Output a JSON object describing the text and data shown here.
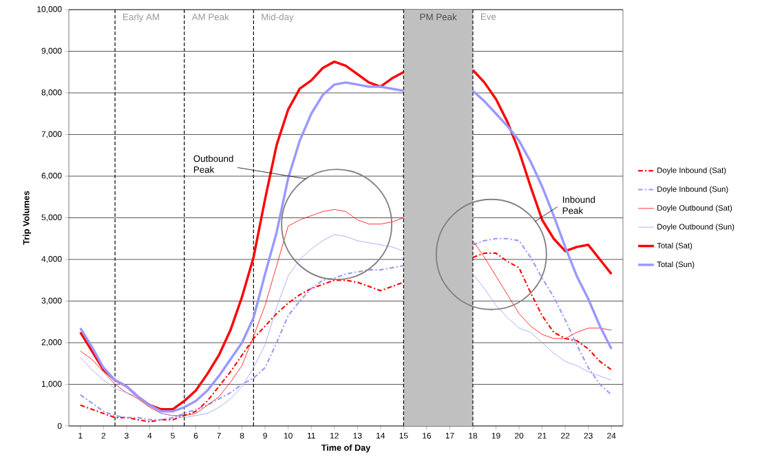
{
  "chart_data": {
    "type": "line",
    "xlabel": "Time of Day",
    "ylabel": "Trip Volumes",
    "x": [
      1,
      1.5,
      2,
      2.5,
      3,
      3.5,
      4,
      4.5,
      5,
      5.5,
      6,
      6.5,
      7,
      7.5,
      8,
      8.5,
      9,
      9.5,
      10,
      10.5,
      11,
      11.5,
      12,
      12.5,
      13,
      13.5,
      14,
      14.5,
      15,
      15.5,
      16,
      16.5,
      17,
      17.5,
      18,
      18.5,
      19,
      19.5,
      20,
      20.5,
      21,
      21.5,
      22,
      22.5,
      23,
      23.5,
      24
    ],
    "series": [
      {
        "name": "Doyle Inbound (Sat)",
        "color": "#ff0000",
        "line_style": "dashed",
        "values": [
          500,
          400,
          300,
          200,
          200,
          150,
          100,
          150,
          150,
          250,
          350,
          600,
          950,
          1300,
          1700,
          2100,
          2400,
          2700,
          2950,
          3150,
          3300,
          3400,
          3500,
          3500,
          3450,
          3350,
          3250,
          3350,
          3450,
          null,
          null,
          null,
          null,
          null,
          4050,
          4150,
          4150,
          3950,
          3800,
          3200,
          2650,
          2250,
          2100,
          2050,
          1850,
          1550,
          1350
        ]
      },
      {
        "name": "Doyle Inbound (Sun)",
        "color": "#9999ff",
        "line_style": "dashed",
        "values": [
          750,
          550,
          350,
          250,
          200,
          200,
          150,
          150,
          200,
          300,
          400,
          500,
          650,
          800,
          1000,
          1150,
          1400,
          2000,
          2650,
          3000,
          3300,
          3500,
          3550,
          3650,
          3700,
          3750,
          3750,
          3800,
          3850,
          null,
          null,
          null,
          null,
          null,
          4350,
          4450,
          4500,
          4500,
          4450,
          4050,
          3550,
          3100,
          2550,
          1950,
          1400,
          1000,
          750
        ]
      },
      {
        "name": "Doyle Outbound (Sat)",
        "color": "#ff0000",
        "values": [
          1800,
          1600,
          1300,
          1000,
          800,
          650,
          450,
          300,
          250,
          250,
          300,
          500,
          700,
          1050,
          1450,
          2150,
          2900,
          3850,
          4800,
          4950,
          5050,
          5150,
          5200,
          5150,
          4950,
          4850,
          4850,
          4900,
          5000,
          null,
          null,
          null,
          null,
          null,
          4450,
          4050,
          3600,
          3150,
          2700,
          2400,
          2200,
          2100,
          2100,
          2250,
          2350,
          2350,
          2300
        ]
      },
      {
        "name": "Doyle Outbound (Sun)",
        "color": "#9999ff",
        "values": [
          1650,
          1350,
          1100,
          900,
          800,
          700,
          500,
          300,
          250,
          200,
          250,
          300,
          450,
          650,
          950,
          1400,
          1950,
          2850,
          3600,
          4000,
          4250,
          4450,
          4600,
          4550,
          4450,
          4400,
          4350,
          4300,
          4200,
          null,
          null,
          null,
          null,
          null,
          3650,
          3300,
          2900,
          2600,
          2350,
          2250,
          2000,
          1750,
          1550,
          1450,
          1300,
          1200,
          1100
        ]
      },
      {
        "name": "Total (Sat)",
        "color": "#ff0000",
        "values": [
          2250,
          1800,
          1350,
          1100,
          950,
          700,
          500,
          400,
          400,
          600,
          850,
          1250,
          1700,
          2300,
          3100,
          4050,
          5450,
          6750,
          7600,
          8100,
          8300,
          8600,
          8750,
          8650,
          8450,
          8250,
          8150,
          8350,
          8500,
          null,
          null,
          null,
          null,
          null,
          8550,
          8250,
          7850,
          7300,
          6600,
          5750,
          4950,
          4500,
          4200,
          4300,
          4350,
          4000,
          3650
        ]
      },
      {
        "name": "Total (Sun)",
        "color": "#9999ff",
        "values": [
          2350,
          1900,
          1400,
          1100,
          950,
          700,
          500,
          350,
          350,
          450,
          600,
          850,
          1200,
          1600,
          2000,
          2600,
          3650,
          4650,
          5950,
          6850,
          7500,
          7950,
          8200,
          8250,
          8200,
          8150,
          8150,
          8100,
          8050,
          null,
          null,
          null,
          null,
          null,
          8050,
          7800,
          7500,
          7200,
          6850,
          6350,
          5750,
          5050,
          4300,
          3600,
          3050,
          2400,
          1850
        ]
      }
    ],
    "xlim": [
      0.5,
      24.5
    ],
    "ylim": [
      0,
      10000
    ],
    "xticks": [
      1,
      2,
      3,
      4,
      5,
      6,
      7,
      8,
      9,
      10,
      11,
      12,
      13,
      14,
      15,
      16,
      17,
      18,
      19,
      20,
      21,
      22,
      23,
      24
    ],
    "yticks": [
      0,
      {
        "value": 1000,
        "label": "1,000"
      },
      {
        "value": 2000,
        "label": "2,000"
      },
      {
        "value": 3000,
        "label": "3,000"
      },
      {
        "value": 4000,
        "label": "4,000"
      },
      {
        "value": 5000,
        "label": "5,000"
      },
      {
        "value": 6000,
        "label": "6,000"
      },
      {
        "value": 7000,
        "label": "7,000"
      },
      {
        "value": 8000,
        "label": "8,000"
      },
      {
        "value": 9000,
        "label": "9,000"
      },
      {
        "value": 10000,
        "label": "10,000"
      }
    ],
    "grid": "y",
    "legend": "right",
    "ref_lines": [
      {
        "axis": "x",
        "value": 2.5,
        "line_style": "dashed",
        "label": "Early AM"
      },
      {
        "axis": "x",
        "value": 5.5,
        "line_style": "dashed",
        "label": "AM Peak"
      },
      {
        "axis": "x",
        "value": 8.5,
        "line_style": "dashed",
        "label": "Mid-day"
      },
      {
        "axis": "x",
        "value": 15,
        "line_style": "dashed"
      },
      {
        "axis": "x",
        "value": 18,
        "line_style": "dashed",
        "label": "Eve"
      }
    ],
    "bands": [
      {
        "axis": "x",
        "from": 15,
        "to": 18,
        "label": "PM Peak",
        "color": "#c0c0c0"
      }
    ],
    "annotations": [
      "Outbound Peak",
      "Inbound Peak"
    ]
  }
}
